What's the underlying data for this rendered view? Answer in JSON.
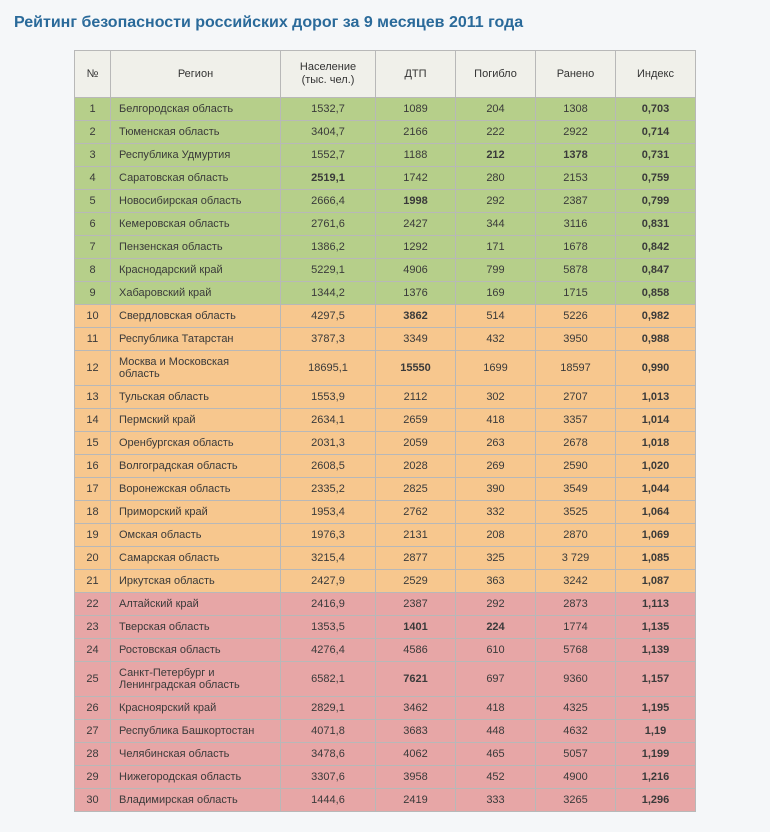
{
  "title": "Рейтинг безопасности российских дорог за 9 месяцев 2011 года",
  "columns": [
    "№",
    "Регион",
    "Население (тыс. чел.)",
    "ДТП",
    "Погибло",
    "Ранено",
    "Индекс"
  ],
  "bands": {
    "green": {
      "class": "band-green",
      "from": 1,
      "to": 9
    },
    "orange": {
      "class": "band-orange",
      "from": 10,
      "to": 21
    },
    "pink": {
      "class": "band-pink",
      "from": 22,
      "to": 30
    }
  },
  "rows": [
    {
      "n": 1,
      "region": "Белгородская область",
      "pop": "1532,7",
      "dtp": "1089",
      "died": "204",
      "inj": "1308",
      "idx": "0,703"
    },
    {
      "n": 2,
      "region": "Тюменская область",
      "pop": "3404,7",
      "dtp": "2166",
      "died": "222",
      "inj": "2922",
      "idx": "0,714"
    },
    {
      "n": 3,
      "region": "Республика Удмуртия",
      "pop": "1552,7",
      "dtp": "1188",
      "died": "212",
      "inj": "1378",
      "idx": "0,731",
      "bold": [
        "died",
        "inj"
      ]
    },
    {
      "n": 4,
      "region": "Саратовская область",
      "pop": "2519,1",
      "dtp": "1742",
      "died": "280",
      "inj": "2153",
      "idx": "0,759",
      "bold": [
        "pop"
      ]
    },
    {
      "n": 5,
      "region": "Новосибирская область",
      "pop": "2666,4",
      "dtp": "1998",
      "died": "292",
      "inj": "2387",
      "idx": "0,799",
      "bold": [
        "dtp"
      ]
    },
    {
      "n": 6,
      "region": "Кемеровская область",
      "pop": "2761,6",
      "dtp": "2427",
      "died": "344",
      "inj": "3116",
      "idx": "0,831"
    },
    {
      "n": 7,
      "region": "Пензенская область",
      "pop": "1386,2",
      "dtp": "1292",
      "died": "171",
      "inj": "1678",
      "idx": "0,842"
    },
    {
      "n": 8,
      "region": "Краснодарский край",
      "pop": "5229,1",
      "dtp": "4906",
      "died": "799",
      "inj": "5878",
      "idx": "0,847"
    },
    {
      "n": 9,
      "region": "Хабаровский край",
      "pop": "1344,2",
      "dtp": "1376",
      "died": "169",
      "inj": "1715",
      "idx": "0,858"
    },
    {
      "n": 10,
      "region": "Свердловская область",
      "pop": "4297,5",
      "dtp": "3862",
      "died": "514",
      "inj": "5226",
      "idx": "0,982",
      "bold": [
        "dtp"
      ]
    },
    {
      "n": 11,
      "region": "Республика Татарстан",
      "pop": "3787,3",
      "dtp": "3349",
      "died": "432",
      "inj": "3950",
      "idx": "0,988"
    },
    {
      "n": 12,
      "region": "Москва и Московская область",
      "pop": "18695,1",
      "dtp": "15550",
      "died": "1699",
      "inj": "18597",
      "idx": "0,990",
      "bold": [
        "dtp"
      ]
    },
    {
      "n": 13,
      "region": "Тульская область",
      "pop": "1553,9",
      "dtp": "2112",
      "died": "302",
      "inj": "2707",
      "idx": "1,013"
    },
    {
      "n": 14,
      "region": "Пермский край",
      "pop": "2634,1",
      "dtp": "2659",
      "died": "418",
      "inj": "3357",
      "idx": "1,014"
    },
    {
      "n": 15,
      "region": "Оренбургская область",
      "pop": "2031,3",
      "dtp": "2059",
      "died": "263",
      "inj": "2678",
      "idx": "1,018"
    },
    {
      "n": 16,
      "region": "Волгоградская область",
      "pop": "2608,5",
      "dtp": "2028",
      "died": "269",
      "inj": "2590",
      "idx": "1,020"
    },
    {
      "n": 17,
      "region": "Воронежская область",
      "pop": "2335,2",
      "dtp": "2825",
      "died": "390",
      "inj": "3549",
      "idx": "1,044"
    },
    {
      "n": 18,
      "region": "Приморский край",
      "pop": "1953,4",
      "dtp": "2762",
      "died": "332",
      "inj": "3525",
      "idx": "1,064"
    },
    {
      "n": 19,
      "region": "Омская область",
      "pop": "1976,3",
      "dtp": "2131",
      "died": "208",
      "inj": "2870",
      "idx": "1,069"
    },
    {
      "n": 20,
      "region": "Самарская область",
      "pop": "3215,4",
      "dtp": "2877",
      "died": "325",
      "inj": "3 729",
      "idx": "1,085"
    },
    {
      "n": 21,
      "region": "Иркутская область",
      "pop": "2427,9",
      "dtp": "2529",
      "died": "363",
      "inj": "3242",
      "idx": "1,087"
    },
    {
      "n": 22,
      "region": "Алтайский край",
      "pop": "2416,9",
      "dtp": "2387",
      "died": "292",
      "inj": "2873",
      "idx": "1,113"
    },
    {
      "n": 23,
      "region": "Тверская область",
      "pop": "1353,5",
      "dtp": "1401",
      "died": "224",
      "inj": "1774",
      "idx": "1,135",
      "bold": [
        "dtp",
        "died"
      ]
    },
    {
      "n": 24,
      "region": "Ростовская область",
      "pop": "4276,4",
      "dtp": "4586",
      "died": "610",
      "inj": "5768",
      "idx": "1,139"
    },
    {
      "n": 25,
      "region": "Санкт-Петербург и Ленинградская область",
      "pop": "6582,1",
      "dtp": "7621",
      "died": "697",
      "inj": "9360",
      "idx": "1,157",
      "bold": [
        "dtp"
      ]
    },
    {
      "n": 26,
      "region": "Красноярский край",
      "pop": "2829,1",
      "dtp": "3462",
      "died": "418",
      "inj": "4325",
      "idx": "1,195"
    },
    {
      "n": 27,
      "region": "Республика Башкортостан",
      "pop": "4071,8",
      "dtp": "3683",
      "died": "448",
      "inj": "4632",
      "idx": "1,19"
    },
    {
      "n": 28,
      "region": "Челябинская область",
      "pop": "3478,6",
      "dtp": "4062",
      "died": "465",
      "inj": "5057",
      "idx": "1,199"
    },
    {
      "n": 29,
      "region": "Нижегородская область",
      "pop": "3307,6",
      "dtp": "3958",
      "died": "452",
      "inj": "4900",
      "idx": "1,216"
    },
    {
      "n": 30,
      "region": "Владимирская область",
      "pop": "1444,6",
      "dtp": "2419",
      "died": "333",
      "inj": "3265",
      "idx": "1,296"
    }
  ]
}
